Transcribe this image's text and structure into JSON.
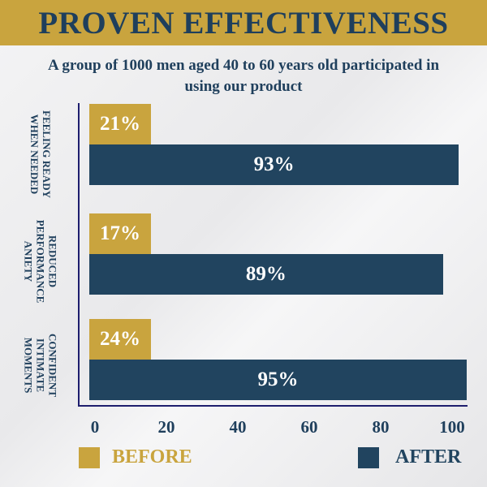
{
  "title": "PROVEN EFFECTIVENESS",
  "subtitle_line1": "A group of 1000 men aged 40 to 60 years old participated in",
  "subtitle_line2": "using our product",
  "colors": {
    "before": "#c9a43e",
    "after": "#21445f",
    "title": "#1f3f5c"
  },
  "chart_data": {
    "type": "bar",
    "orientation": "horizontal",
    "categories": [
      "FEELING READY WHEN NEEDED",
      "REDUCED PERFORMANCE ANIETY",
      "CONFIDENT INTIMATE MOMENTS"
    ],
    "category_lines": [
      [
        "FEELING READY",
        "WHEN NEEDED"
      ],
      [
        "REDUCED",
        "PERFORMANCE",
        "ANIETY"
      ],
      [
        "CONFIDENT",
        "INTIMATE",
        "MOMENTS"
      ]
    ],
    "series": [
      {
        "name": "BEFORE",
        "values": [
          21,
          17,
          24
        ],
        "labels": [
          "21%",
          "17%",
          "24%"
        ]
      },
      {
        "name": "AFTER",
        "values": [
          93,
          89,
          95
        ],
        "labels": [
          "93%",
          "89%",
          "95%"
        ]
      }
    ],
    "xticks": [
      "0",
      "20",
      "40",
      "60",
      "80",
      "100"
    ],
    "xlim": [
      0,
      100
    ],
    "legend": [
      "BEFORE",
      "AFTER"
    ],
    "legend_position": "bottom"
  }
}
